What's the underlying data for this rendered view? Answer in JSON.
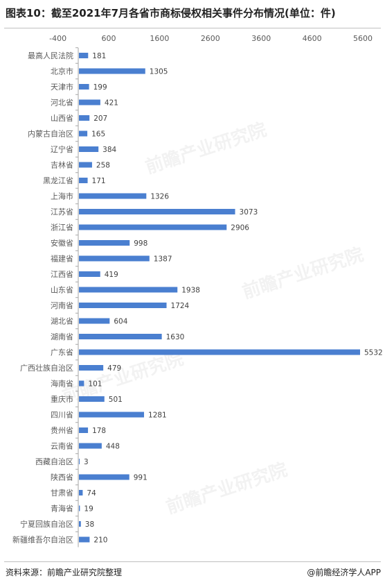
{
  "title": "图表10：截至2021年7月各省市商标侵权相关事件分布情况(单位：件)",
  "footer": {
    "source": "资料来源：前瞻产业研究院整理",
    "credit": "@前瞻经济学人APP"
  },
  "watermark": "前瞻产业研究院",
  "colors": {
    "bar": "#4a7fd0",
    "axis_text": "#595959",
    "label_text": "#404040"
  },
  "chart_data": {
    "type": "bar",
    "orientation": "horizontal",
    "title": "图表10：截至2021年7月各省市商标侵权相关事件分布情况(单位：件)",
    "xlabel": "",
    "ylabel": "",
    "xlim": [
      -400,
      5600
    ],
    "xticks": [
      -400,
      600,
      1600,
      2600,
      3600,
      4600,
      5600
    ],
    "xtick_labels": [
      "-400",
      "600",
      "1600",
      "2600",
      "3600",
      "4600",
      "5600"
    ],
    "grid": false,
    "legend": "none",
    "categories": [
      "最高人民法院",
      "北京市",
      "天津市",
      "河北省",
      "山西省",
      "内蒙古自治区",
      "辽宁省",
      "吉林省",
      "黑龙江省",
      "上海市",
      "江苏省",
      "浙江省",
      "安徽省",
      "福建省",
      "江西省",
      "山东省",
      "河南省",
      "湖北省",
      "湖南省",
      "广东省",
      "广西壮族自治区",
      "海南省",
      "重庆市",
      "四川省",
      "贵州省",
      "云南省",
      "西藏自治区",
      "陕西省",
      "甘肃省",
      "青海省",
      "宁夏回族自治区",
      "新疆维吾尔自治区"
    ],
    "values": [
      181,
      1305,
      199,
      421,
      207,
      165,
      384,
      258,
      171,
      1326,
      3073,
      2906,
      998,
      1387,
      419,
      1938,
      1724,
      604,
      1630,
      5532,
      479,
      101,
      501,
      1281,
      178,
      448,
      3,
      991,
      74,
      19,
      38,
      210
    ]
  }
}
